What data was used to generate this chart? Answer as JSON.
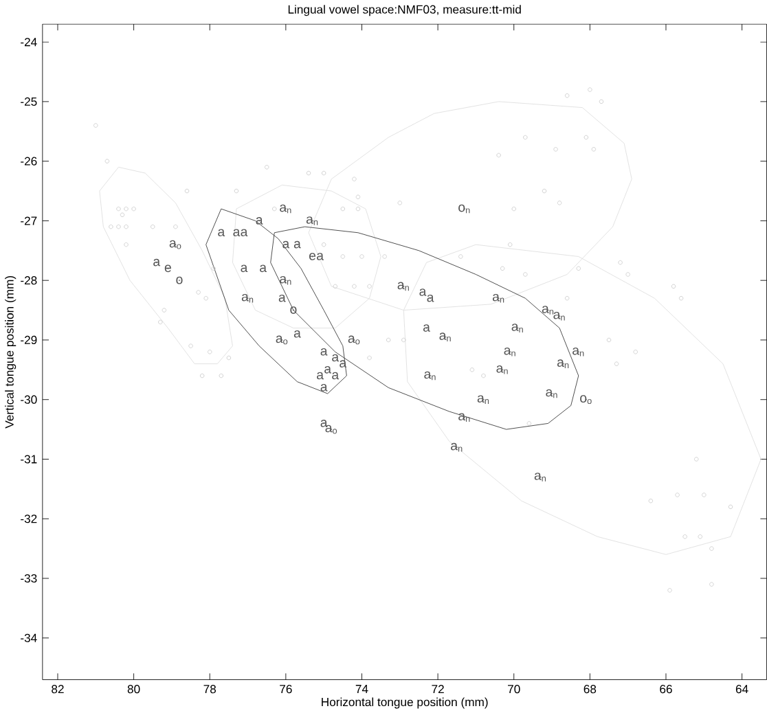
{
  "chart_data": {
    "type": "line",
    "title": "Lingual vowel space:NMF03, measure:tt-mid",
    "xlabel": "Horizontal tongue position (mm)",
    "ylabel": "Vertical tongue position (mm)",
    "xlim": [
      82.4,
      63.35
    ],
    "ylim": [
      -34.7,
      -23.7
    ],
    "xticks": [
      82,
      80,
      78,
      76,
      74,
      72,
      70,
      68,
      66,
      64
    ],
    "yticks": [
      -34,
      -33,
      -32,
      -31,
      -30,
      -29,
      -28,
      -27,
      -26,
      -25,
      -24
    ],
    "line_style": "solid",
    "series": [
      {
        "type": "scatter",
        "marker": "circle",
        "color": "#cccccc",
        "x": [
          81.0,
          80.7,
          80.4,
          80.3,
          80.2,
          80.0,
          80.6,
          80.4,
          80.2,
          80.2,
          79.5,
          78.9,
          79.2,
          79.3,
          78.6,
          78.3,
          78.1,
          77.9,
          76.5,
          77.3,
          75.4,
          75.0,
          74.2,
          74.1,
          76.3,
          74.5,
          74.1,
          75.0,
          74.5,
          74.0,
          73.4,
          73.0,
          74.2,
          73.8,
          74.7,
          68.6,
          68.0,
          67.7,
          69.7,
          68.9,
          68.1,
          67.9,
          70.4,
          69.2,
          68.8,
          70.0,
          70.1,
          71.4,
          70.3,
          69.7,
          68.3,
          67.2,
          67.0,
          68.6,
          65.8,
          65.6,
          78.5,
          78.0,
          77.5,
          78.2,
          77.7,
          73.3,
          72.9,
          73.8,
          67.5,
          66.8,
          67.3,
          71.1,
          70.8,
          69.6,
          65.2,
          65.7,
          65.0,
          64.3,
          66.4,
          65.5,
          65.1,
          64.8,
          65.9,
          64.8
        ],
        "values": [
          -25.4,
          -26.0,
          -26.8,
          -26.9,
          -26.8,
          -26.8,
          -27.1,
          -27.1,
          -27.1,
          -27.4,
          -27.1,
          -27.1,
          -28.5,
          -28.7,
          -26.5,
          -28.2,
          -28.3,
          -27.8,
          -26.1,
          -26.5,
          -26.2,
          -26.2,
          -26.3,
          -26.6,
          -26.8,
          -26.8,
          -26.8,
          -27.4,
          -27.6,
          -27.6,
          -27.6,
          -26.7,
          -28.1,
          -28.1,
          -28.1,
          -24.9,
          -24.8,
          -25.0,
          -25.6,
          -25.8,
          -25.6,
          -25.8,
          -25.9,
          -26.5,
          -26.7,
          -26.8,
          -27.4,
          -27.6,
          -27.8,
          -27.9,
          -27.8,
          -27.7,
          -27.9,
          -28.3,
          -28.1,
          -28.3,
          -29.1,
          -29.2,
          -29.3,
          -29.6,
          -29.6,
          -29.0,
          -29.0,
          -29.3,
          -29.0,
          -29.2,
          -29.4,
          -29.5,
          -29.6,
          -30.4,
          -31.0,
          -31.6,
          -31.6,
          -31.8,
          -31.7,
          -32.3,
          -32.3,
          -32.5,
          -33.2,
          -33.1
        ]
      },
      {
        "color": "#dddddd",
        "x": [
          80.9,
          80.4,
          79.7,
          78.9,
          78.2,
          77.6,
          77.4
        ],
        "values": [
          -26.5,
          -26.1,
          -26.2,
          -26.7,
          -27.5,
          -28.3,
          -29.1
        ]
      },
      {
        "color": "#dddddd",
        "x": [
          77.4,
          77.8,
          78.4,
          79.1,
          80.1,
          80.8,
          80.9
        ],
        "values": [
          -29.1,
          -29.4,
          -29.4,
          -28.8,
          -28.0,
          -27.1,
          -26.5
        ]
      },
      {
        "color": "#dddddd",
        "x": [
          77.4,
          77.3,
          76.1,
          74.8,
          73.9,
          73.5
        ],
        "values": [
          -27.7,
          -26.8,
          -26.4,
          -26.5,
          -26.8,
          -27.6
        ]
      },
      {
        "color": "#dddddd",
        "x": [
          73.5,
          73.8,
          74.7,
          75.8,
          76.8,
          77.4
        ],
        "values": [
          -27.6,
          -28.3,
          -28.8,
          -28.8,
          -28.5,
          -27.7
        ]
      },
      {
        "color": "#dddddd",
        "x": [
          75.4,
          74.8,
          73.3,
          72.1,
          70.4,
          68.2,
          67.1,
          66.9
        ],
        "values": [
          -27.2,
          -26.3,
          -25.6,
          -25.2,
          -25.0,
          -25.1,
          -25.7,
          -26.3
        ]
      },
      {
        "color": "#dddddd",
        "x": [
          66.9,
          67.4,
          68.6,
          70.6,
          72.9,
          74.8,
          75.4
        ],
        "values": [
          -26.3,
          -27.1,
          -27.9,
          -28.4,
          -28.5,
          -28.1,
          -27.2
        ]
      },
      {
        "color": "#dddddd",
        "x": [
          72.9,
          72.3,
          71.0,
          68.3,
          66.3,
          64.5,
          63.5
        ],
        "values": [
          -28.5,
          -27.7,
          -27.4,
          -27.6,
          -28.3,
          -29.4,
          -31.0
        ]
      },
      {
        "color": "#dddddd",
        "x": [
          63.5,
          64.3,
          66.0,
          67.8,
          69.8,
          71.7,
          72.8,
          72.9
        ],
        "values": [
          -31.0,
          -32.3,
          -32.6,
          -32.3,
          -31.7,
          -30.7,
          -29.7,
          -28.5
        ]
      },
      {
        "color": "#333333",
        "x": [
          78.1,
          77.7,
          76.8,
          76.2,
          75.6,
          75.0,
          74.5,
          74.4
        ],
        "values": [
          -27.4,
          -26.8,
          -27.0,
          -27.3,
          -27.8,
          -28.5,
          -29.1,
          -29.6
        ]
      },
      {
        "color": "#333333",
        "x": [
          74.4,
          74.9,
          75.7,
          76.7,
          77.5,
          78.1
        ],
        "values": [
          -29.6,
          -29.9,
          -29.7,
          -29.1,
          -28.5,
          -27.4
        ]
      },
      {
        "color": "#333333",
        "x": [
          76.4,
          76.3,
          75.5,
          74.1,
          72.5,
          71.0,
          69.7,
          68.8,
          68.3
        ],
        "values": [
          -27.7,
          -27.2,
          -27.1,
          -27.2,
          -27.5,
          -27.9,
          -28.3,
          -28.8,
          -29.6
        ]
      },
      {
        "color": "#333333",
        "x": [
          68.3,
          68.5,
          69.1,
          70.2,
          71.7,
          73.3,
          74.7,
          75.8,
          76.4
        ],
        "values": [
          -29.6,
          -30.1,
          -30.4,
          -30.5,
          -30.2,
          -29.8,
          -29.2,
          -28.5,
          -27.7
        ]
      },
      {
        "type": "scatter",
        "marker": "circle",
        "color": "#555555",
        "x": [
          76.0,
          75.3,
          77.7,
          77.3,
          77.1,
          76.7,
          78.9,
          79.4,
          79.1,
          78.8,
          77.1,
          76.6,
          76.0,
          76.1,
          75.8,
          77.0,
          76.0,
          75.7,
          75.3,
          75.1,
          72.9,
          71.3,
          72.4,
          72.2,
          72.3,
          70.4,
          69.1,
          68.8,
          69.9,
          75.7,
          76.1,
          74.2,
          75.0,
          74.7,
          74.9,
          74.5,
          75.1,
          74.7,
          75.0,
          75.0,
          74.8,
          71.8,
          70.1,
          70.3,
          68.3,
          68.7,
          72.2,
          70.8,
          69.0,
          68.1,
          71.3,
          71.5,
          69.3
        ],
        "values": [
          -26.8,
          -27.0,
          -27.2,
          -27.2,
          -27.2,
          -27.0,
          -27.4,
          -27.7,
          -27.8,
          -28.0,
          -27.8,
          -27.8,
          -28.0,
          -28.3,
          -28.5,
          -28.3,
          -27.4,
          -27.4,
          -27.6,
          -27.6,
          -28.1,
          -26.8,
          -28.2,
          -28.3,
          -28.8,
          -28.3,
          -28.5,
          -28.6,
          -28.8,
          -28.9,
          -29.0,
          -29.0,
          -29.2,
          -29.3,
          -29.5,
          -29.4,
          -29.6,
          -29.6,
          -29.8,
          -30.4,
          -30.5,
          -28.95,
          -29.2,
          -29.5,
          -29.2,
          -29.4,
          -29.6,
          -30.0,
          -29.9,
          -30.0,
          -30.3,
          -30.8,
          -31.3
        ],
        "value_labels": [
          "a$_{n}$",
          "a$_{n}$",
          "a",
          "a",
          "a",
          "a",
          "a$_{o}$",
          "a",
          "e",
          "o",
          "a",
          "a",
          "a$_{n}$",
          "a",
          "o",
          "a$_{n}$",
          "a",
          "a",
          "e",
          "a",
          "a$_{n}$",
          "o$_{n}$",
          "a",
          "a",
          "a",
          "a$_{n}$",
          "a$_{n}$",
          "a$_{n}$",
          "a$_{n}$",
          "a",
          "a$_{o}$",
          "a$_{o}$",
          "a",
          "a",
          "a",
          "a",
          "a",
          "a",
          "a",
          "a",
          "a$_{o}$",
          "a$_{n}$",
          "a$_{n}$",
          "a$_{n}$",
          "a$_{n}$",
          "a$_{n}$",
          "a$_{n}$",
          "a$_{n}$",
          "a$_{n}$",
          "o$_{o}$",
          "a$_{n}$",
          "a$_{n}$",
          "a$_{n}$"
        ]
      }
    ]
  }
}
